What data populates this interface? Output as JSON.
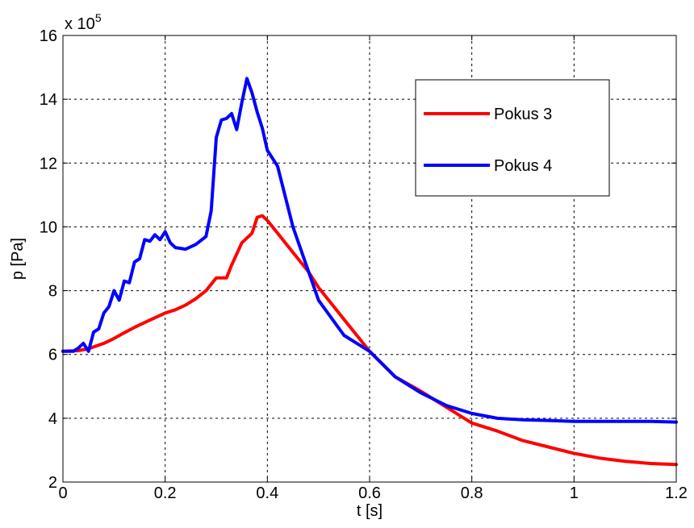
{
  "chart_data": {
    "type": "line",
    "xlabel": "t [s]",
    "ylabel": "p [Pa]",
    "y_multiplier": "x 10",
    "y_exponent": "5",
    "xlim": [
      0,
      1.2
    ],
    "ylim": [
      2,
      16
    ],
    "x_ticks": [
      "0",
      "0.2",
      "0.4",
      "0.6",
      "0.8",
      "1",
      "1.2"
    ],
    "y_ticks": [
      "2",
      "4",
      "6",
      "8",
      "10",
      "12",
      "14",
      "16"
    ],
    "grid": true,
    "legend_placement": "top-right",
    "series": [
      {
        "name": "Pokus 3",
        "color": "#ff0000",
        "x": [
          0,
          0.03,
          0.05,
          0.08,
          0.1,
          0.12,
          0.14,
          0.16,
          0.18,
          0.2,
          0.22,
          0.24,
          0.26,
          0.28,
          0.3,
          0.32,
          0.33,
          0.35,
          0.37,
          0.38,
          0.39,
          0.4,
          0.42,
          0.45,
          0.48,
          0.5,
          0.55,
          0.6,
          0.65,
          0.7,
          0.75,
          0.8,
          0.85,
          0.9,
          0.95,
          1.0,
          1.05,
          1.1,
          1.15,
          1.2
        ],
        "values": [
          6.1,
          6.12,
          6.18,
          6.35,
          6.5,
          6.68,
          6.85,
          7.0,
          7.15,
          7.3,
          7.4,
          7.55,
          7.75,
          8.0,
          8.4,
          8.4,
          8.8,
          9.5,
          9.8,
          10.3,
          10.35,
          10.2,
          9.8,
          9.2,
          8.6,
          8.1,
          7.1,
          6.1,
          5.3,
          4.85,
          4.35,
          3.85,
          3.6,
          3.3,
          3.1,
          2.9,
          2.75,
          2.65,
          2.58,
          2.55
        ]
      },
      {
        "name": "Pokus 4",
        "color": "#0000ff",
        "x": [
          0,
          0.02,
          0.03,
          0.04,
          0.05,
          0.06,
          0.07,
          0.08,
          0.09,
          0.1,
          0.11,
          0.12,
          0.13,
          0.14,
          0.15,
          0.16,
          0.17,
          0.18,
          0.19,
          0.2,
          0.21,
          0.22,
          0.24,
          0.26,
          0.28,
          0.29,
          0.3,
          0.31,
          0.32,
          0.33,
          0.34,
          0.35,
          0.36,
          0.37,
          0.38,
          0.39,
          0.4,
          0.42,
          0.45,
          0.5,
          0.55,
          0.6,
          0.65,
          0.7,
          0.75,
          0.8,
          0.85,
          0.9,
          0.95,
          1.0,
          1.05,
          1.1,
          1.15,
          1.2
        ],
        "values": [
          6.1,
          6.1,
          6.2,
          6.35,
          6.1,
          6.7,
          6.8,
          7.3,
          7.5,
          8.0,
          7.7,
          8.3,
          8.25,
          8.9,
          9.0,
          9.6,
          9.55,
          9.75,
          9.6,
          9.85,
          9.5,
          9.35,
          9.3,
          9.45,
          9.7,
          10.5,
          12.8,
          13.35,
          13.4,
          13.55,
          13.05,
          13.9,
          14.65,
          14.2,
          13.6,
          13.1,
          12.4,
          11.9,
          10.0,
          7.7,
          6.6,
          6.1,
          5.3,
          4.8,
          4.4,
          4.15,
          4.0,
          3.95,
          3.93,
          3.9,
          3.9,
          3.9,
          3.9,
          3.88
        ]
      }
    ]
  }
}
